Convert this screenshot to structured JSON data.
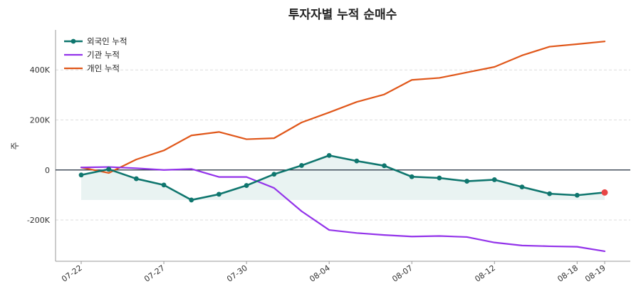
{
  "chart_data": {
    "type": "line",
    "title": "투자자별 누적 순매수",
    "xlabel": "",
    "ylabel": "주",
    "x": [
      "07-22",
      "07-23",
      "07-24",
      "07-27",
      "07-28",
      "07-29",
      "07-30",
      "07-31",
      "08-03",
      "08-04",
      "08-05",
      "08-06",
      "08-07",
      "08-10",
      "08-11",
      "08-12",
      "08-13",
      "08-14",
      "08-18",
      "08-19"
    ],
    "x_tick_labels": [
      "07-22",
      "07-27",
      "07-30",
      "08-04",
      "08-07",
      "08-12",
      "08-18",
      "08-19"
    ],
    "y_ticks": [
      -200000,
      0,
      200000,
      400000
    ],
    "y_tick_labels": [
      "-200K",
      "0",
      "200K",
      "400K"
    ],
    "ylim": [
      -365000,
      560000
    ],
    "grid": "horizontal-dashed",
    "legend": "top-left",
    "zero_line": true,
    "fill_series": "외국인 누적",
    "fill_baseline": -120000,
    "last_point_highlight": "#e84545",
    "series": [
      {
        "name": "외국인 누적",
        "color": "#0f766e",
        "markers": true,
        "values": [
          -20000,
          3000,
          -35000,
          -60000,
          -120000,
          -97000,
          -62000,
          -17000,
          18000,
          58000,
          36000,
          17000,
          -27000,
          -32000,
          -45000,
          -39000,
          -68000,
          -95000,
          -101000,
          -90000
        ]
      },
      {
        "name": "기관 누적",
        "color": "#9333ea",
        "markers": false,
        "values": [
          10000,
          12000,
          7000,
          0,
          4000,
          -28000,
          -28000,
          -72000,
          -165000,
          -240000,
          -252000,
          -260000,
          -266000,
          -264000,
          -268000,
          -290000,
          -302000,
          -305000,
          -307000,
          -325000
        ]
      },
      {
        "name": "개인 누적",
        "color": "#e0571a",
        "markers": false,
        "values": [
          10000,
          -12000,
          42000,
          78000,
          138000,
          152000,
          123000,
          127000,
          190000,
          230000,
          272000,
          302000,
          360000,
          368000,
          390000,
          412000,
          458000,
          493000,
          503000,
          514000
        ]
      }
    ]
  }
}
